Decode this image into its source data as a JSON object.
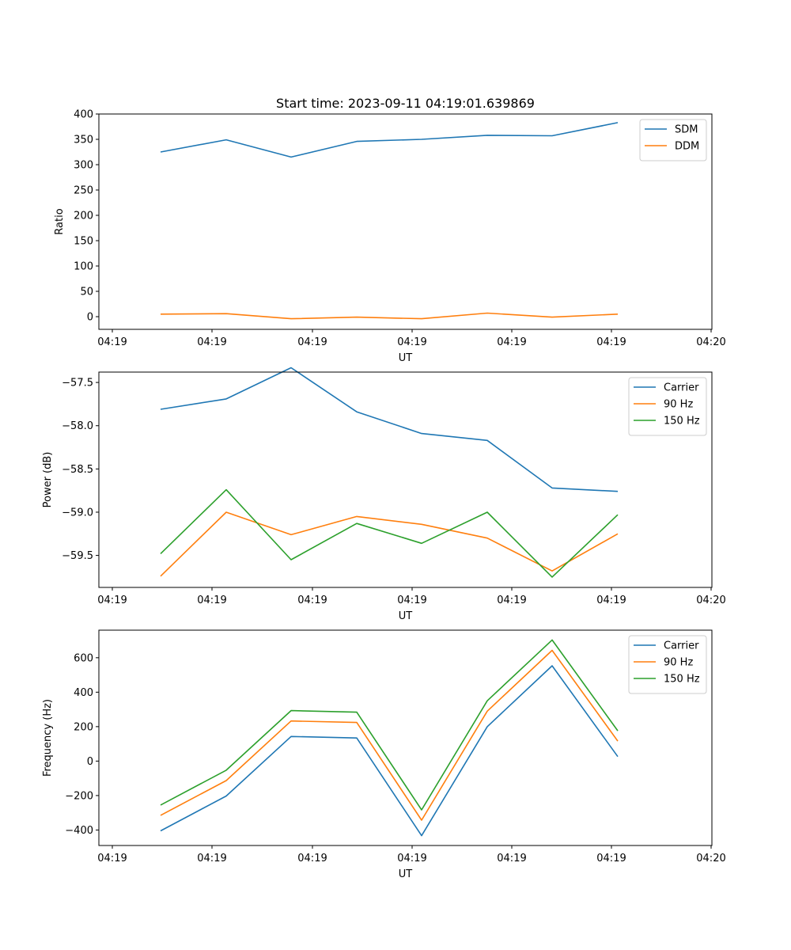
{
  "figure": {
    "title": "Start time: 2023-09-11 04:19:01.639869"
  },
  "chart_data": [
    {
      "type": "line",
      "title": "Start time: 2023-09-11 04:19:01.639869",
      "xlabel": "UT",
      "ylabel": "Ratio",
      "x_tick_labels": [
        "04:19",
        "04:19",
        "04:19",
        "04:19",
        "04:19",
        "04:19",
        "04:19",
        "04:20"
      ],
      "y_ticks": [
        0,
        50,
        100,
        150,
        200,
        250,
        300,
        350,
        400
      ],
      "ylim": [
        -25,
        400
      ],
      "xlim": [
        -0.7,
        8.3
      ],
      "x": [
        0,
        1,
        2,
        3,
        4,
        5,
        6,
        7
      ],
      "legend_position": "top-right",
      "series": [
        {
          "name": "SDM",
          "color": "#1f77b4",
          "values": [
            325,
            349,
            315,
            346,
            350,
            358,
            357,
            383
          ]
        },
        {
          "name": "DDM",
          "color": "#ff7f0e",
          "values": [
            5,
            6,
            -4,
            -1,
            -4,
            7,
            -1,
            5
          ]
        }
      ]
    },
    {
      "type": "line",
      "xlabel": "UT",
      "ylabel": "Power (dB)",
      "x_tick_labels": [
        "04:19",
        "04:19",
        "04:19",
        "04:19",
        "04:19",
        "04:19",
        "04:19",
        "04:20"
      ],
      "y_ticks": [
        -57.5,
        -58.0,
        -58.5,
        -59.0,
        -59.5
      ],
      "y_tick_labels": [
        "−57.5",
        "−58.0",
        "−58.5",
        "−59.0",
        "−59.5"
      ],
      "ylim": [
        -59.87,
        -57.38
      ],
      "xlim": [
        -0.7,
        8.3
      ],
      "x": [
        0,
        1,
        2,
        3,
        4,
        5,
        6,
        7
      ],
      "legend_position": "top-right",
      "series": [
        {
          "name": "Carrier",
          "color": "#1f77b4",
          "values": [
            -57.81,
            -57.69,
            -57.33,
            -57.84,
            -58.09,
            -58.17,
            -58.72,
            -58.76
          ]
        },
        {
          "name": "90 Hz",
          "color": "#ff7f0e",
          "values": [
            -59.74,
            -59.0,
            -59.26,
            -59.05,
            -59.14,
            -59.3,
            -59.68,
            -59.25
          ]
        },
        {
          "name": "150 Hz",
          "color": "#2ca02c",
          "values": [
            -59.48,
            -58.74,
            -59.55,
            -59.13,
            -59.36,
            -59.0,
            -59.75,
            -59.03
          ]
        }
      ]
    },
    {
      "type": "line",
      "xlabel": "UT",
      "ylabel": "Frequency (Hz)",
      "x_tick_labels": [
        "04:19",
        "04:19",
        "04:19",
        "04:19",
        "04:19",
        "04:19",
        "04:19",
        "04:20"
      ],
      "y_ticks": [
        600,
        400,
        200,
        0,
        -200,
        -400
      ],
      "y_tick_labels": [
        "600",
        "400",
        "200",
        "0",
        "−200",
        "−400"
      ],
      "ylim": [
        -490,
        760
      ],
      "xlim": [
        -0.7,
        8.3
      ],
      "x": [
        0,
        1,
        2,
        3,
        4,
        5,
        6,
        7
      ],
      "legend_position": "top-right",
      "series": [
        {
          "name": "Carrier",
          "color": "#1f77b4",
          "values": [
            -405,
            -203,
            143,
            134,
            -433,
            200,
            553,
            26
          ]
        },
        {
          "name": "90 Hz",
          "color": "#ff7f0e",
          "values": [
            -315,
            -113,
            233,
            224,
            -343,
            290,
            643,
            116
          ]
        },
        {
          "name": "150 Hz",
          "color": "#2ca02c",
          "values": [
            -255,
            -53,
            293,
            284,
            -283,
            350,
            703,
            176
          ]
        }
      ]
    }
  ]
}
